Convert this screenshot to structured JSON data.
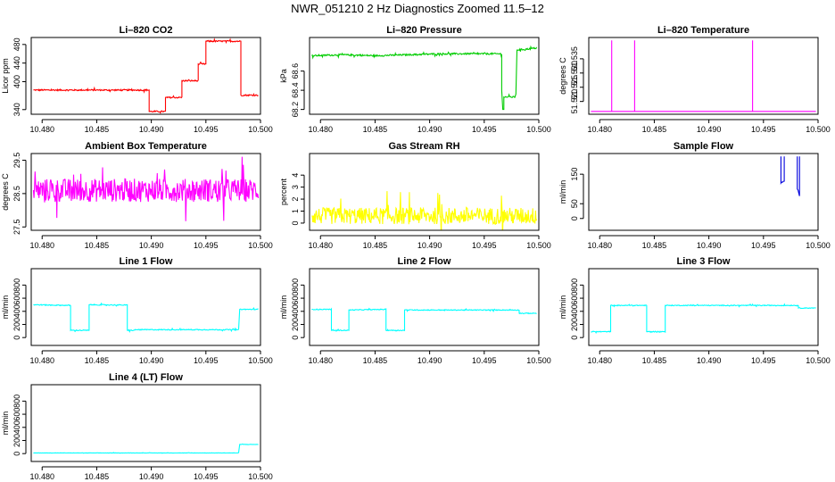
{
  "figure": {
    "title": "NWR_051210  2 Hz Diagnostics Zoomed 11.5–12"
  },
  "chart_data": [
    {
      "id": "p1",
      "type": "line",
      "title": "Li–820 CO2",
      "ylabel": "Licor ppm",
      "color": "#ff0000",
      "xlim": [
        10.479,
        10.5
      ],
      "ylim": [
        330,
        495
      ],
      "xticks": [
        10.48,
        10.485,
        10.49,
        10.495,
        10.5
      ],
      "xtick_labels": [
        "10.480",
        "10.485",
        "10.490",
        "10.495",
        "10.500"
      ],
      "yticks": [
        340,
        400,
        440,
        480
      ],
      "ytick_labels": [
        "340",
        "400",
        "440",
        "480"
      ],
      "series": [
        {
          "noise": 1.5,
          "points": [
            [
              10.4792,
              382
            ],
            [
              10.4898,
              382
            ],
            [
              10.4898,
              336
            ],
            [
              10.4913,
              336
            ],
            [
              10.4913,
              366
            ],
            [
              10.4928,
              366
            ],
            [
              10.4928,
              402
            ],
            [
              10.4943,
              402
            ],
            [
              10.4943,
              438
            ],
            [
              10.495,
              438
            ],
            [
              10.495,
              487
            ],
            [
              10.4982,
              487
            ],
            [
              10.4982,
              371
            ],
            [
              10.4998,
              371
            ]
          ]
        }
      ]
    },
    {
      "id": "p2",
      "type": "line",
      "title": "Li–820 Pressure",
      "ylabel": "kPa",
      "color": "#00cc00",
      "xlim": [
        10.479,
        10.5
      ],
      "ylim": [
        68.15,
        68.95
      ],
      "xticks": [
        10.48,
        10.485,
        10.49,
        10.495,
        10.5
      ],
      "xtick_labels": [
        "10.480",
        "10.485",
        "10.490",
        "10.495",
        "10.500"
      ],
      "yticks": [
        68.2,
        68.4,
        68.6
      ],
      "ytick_labels": [
        "68.2",
        "68.4",
        "68.6"
      ],
      "series": [
        {
          "noise": 0.008,
          "points": [
            [
              10.4792,
              68.76
            ],
            [
              10.482,
              68.77
            ],
            [
              10.485,
              68.76
            ],
            [
              10.488,
              68.77
            ],
            [
              10.491,
              68.78
            ],
            [
              10.4945,
              68.78
            ],
            [
              10.4966,
              68.78
            ],
            [
              10.4966,
              68.4
            ],
            [
              10.4967,
              68.2
            ],
            [
              10.4968,
              68.2
            ],
            [
              10.4968,
              68.33
            ],
            [
              10.4978,
              68.33
            ],
            [
              10.4979,
              68.36
            ],
            [
              10.498,
              68.82
            ],
            [
              10.499,
              68.83
            ],
            [
              10.4998,
              68.84
            ]
          ]
        }
      ]
    },
    {
      "id": "p3",
      "type": "line",
      "title": "Li–820 Temperature",
      "ylabel": "degrees C",
      "color": "#ff00ff",
      "xlim": [
        10.479,
        10.5
      ],
      "ylim": [
        51.5155,
        51.5425
      ],
      "xticks": [
        10.48,
        10.485,
        10.49,
        10.495,
        10.5
      ],
      "xtick_labels": [
        "10.480",
        "10.485",
        "10.490",
        "10.495",
        "10.500"
      ],
      "yticks": [
        51.52,
        51.525,
        51.53,
        51.535
      ],
      "ytick_labels": [
        "51.520",
        "51.525",
        "51.530",
        "51.535"
      ],
      "series": [
        {
          "noise": 0,
          "points": [
            [
              10.4792,
              51.5165
            ],
            [
              10.4811,
              51.5165
            ],
            [
              10.4811,
              51.5415
            ],
            [
              10.4811,
              51.5165
            ],
            [
              10.4832,
              51.5165
            ],
            [
              10.4832,
              51.5415
            ],
            [
              10.4832,
              51.5165
            ],
            [
              10.494,
              51.5165
            ],
            [
              10.494,
              51.5415
            ],
            [
              10.494,
              51.5165
            ],
            [
              10.4998,
              51.5165
            ]
          ]
        }
      ]
    },
    {
      "id": "p4",
      "type": "line",
      "title": "Ambient Box Temperature",
      "ylabel": "degrees C",
      "color": "#ff00ff",
      "xlim": [
        10.479,
        10.5
      ],
      "ylim": [
        27.4,
        29.7
      ],
      "xticks": [
        10.48,
        10.485,
        10.49,
        10.495,
        10.5
      ],
      "xtick_labels": [
        "10.480",
        "10.485",
        "10.490",
        "10.495",
        "10.500"
      ],
      "yticks": [
        27.5,
        28.5,
        29.5
      ],
      "ytick_labels": [
        "27.5",
        "28.5",
        "29.5"
      ],
      "series": [
        {
          "noise": 0.35,
          "points": [
            [
              10.4792,
              28.6
            ],
            [
              10.4998,
              28.6
            ]
          ]
        }
      ]
    },
    {
      "id": "p5",
      "type": "line",
      "title": "Gas Stream RH",
      "ylabel": "percent",
      "color": "#ffff00",
      "xlim": [
        10.479,
        10.5
      ],
      "ylim": [
        -0.6,
        5.8
      ],
      "xticks": [
        10.48,
        10.485,
        10.49,
        10.495,
        10.5
      ],
      "xtick_labels": [
        "10.480",
        "10.485",
        "10.490",
        "10.495",
        "10.500"
      ],
      "yticks": [
        0,
        1,
        2,
        3,
        4
      ],
      "ytick_labels": [
        "0",
        "1",
        "2",
        "3",
        "4"
      ],
      "series": [
        {
          "noise": 0.7,
          "points": [
            [
              10.4792,
              0.6
            ],
            [
              10.4998,
              0.6
            ]
          ]
        }
      ]
    },
    {
      "id": "p6",
      "type": "line",
      "title": "Sample Flow",
      "ylabel": "ml/min",
      "color": "#0000dd",
      "xlim": [
        10.479,
        10.5
      ],
      "ylim": [
        -40,
        220
      ],
      "xticks": [
        10.48,
        10.485,
        10.49,
        10.495,
        10.5
      ],
      "xtick_labels": [
        "10.480",
        "10.485",
        "10.490",
        "10.495",
        "10.500"
      ],
      "yticks": [
        0,
        50,
        150
      ],
      "ytick_labels": [
        "0",
        "50",
        "150"
      ],
      "series": [
        {
          "noise": 6,
          "points": [
            [
              10.4966,
              210
            ],
            [
              10.4966,
              120
            ],
            [
              10.4969,
              130
            ],
            [
              10.4969,
              210
            ]
          ]
        },
        {
          "noise": 6,
          "points": [
            [
              10.4981,
              210
            ],
            [
              10.4981,
              100
            ],
            [
              10.4983,
              80
            ],
            [
              10.4983,
              210
            ]
          ]
        }
      ]
    },
    {
      "id": "p7",
      "type": "line",
      "title": "Line 1 Flow",
      "ylabel": "ml/min",
      "color": "#00ffff",
      "xlim": [
        10.479,
        10.5
      ],
      "ylim": [
        -120,
        1050
      ],
      "xticks": [
        10.48,
        10.485,
        10.49,
        10.495,
        10.5
      ],
      "xtick_labels": [
        "10.480",
        "10.485",
        "10.490",
        "10.495",
        "10.500"
      ],
      "yticks": [
        0,
        200,
        400,
        600,
        800
      ],
      "ytick_labels": [
        "0",
        "200",
        "400",
        "600",
        "800"
      ],
      "series": [
        {
          "noise": 7,
          "points": [
            [
              10.4792,
              500
            ],
            [
              10.4826,
              490
            ],
            [
              10.4826,
              110
            ],
            [
              10.4843,
              110
            ],
            [
              10.4843,
              500
            ],
            [
              10.4878,
              495
            ],
            [
              10.4878,
              110
            ],
            [
              10.4885,
              110
            ],
            [
              10.4885,
              120
            ],
            [
              10.498,
              120
            ],
            [
              10.4981,
              430
            ],
            [
              10.4998,
              430
            ]
          ]
        }
      ]
    },
    {
      "id": "p8",
      "type": "line",
      "title": "Line 2 Flow",
      "ylabel": "ml/min",
      "color": "#00ffff",
      "xlim": [
        10.479,
        10.5
      ],
      "ylim": [
        -120,
        1050
      ],
      "xticks": [
        10.48,
        10.485,
        10.49,
        10.495,
        10.5
      ],
      "xtick_labels": [
        "10.480",
        "10.485",
        "10.490",
        "10.495",
        "10.500"
      ],
      "yticks": [
        0,
        200,
        400,
        600,
        800
      ],
      "ytick_labels": [
        "0",
        "200",
        "400",
        "600",
        "800"
      ],
      "series": [
        {
          "noise": 6,
          "points": [
            [
              10.4792,
              430
            ],
            [
              10.481,
              430
            ],
            [
              10.481,
              110
            ],
            [
              10.4826,
              110
            ],
            [
              10.4826,
              420
            ],
            [
              10.486,
              430
            ],
            [
              10.486,
              110
            ],
            [
              10.4877,
              110
            ],
            [
              10.4877,
              420
            ],
            [
              10.4982,
              420
            ],
            [
              10.4982,
              370
            ],
            [
              10.4998,
              370
            ]
          ]
        }
      ]
    },
    {
      "id": "p9",
      "type": "line",
      "title": "Line 3 Flow",
      "ylabel": "ml/min",
      "color": "#00ffff",
      "xlim": [
        10.479,
        10.5
      ],
      "ylim": [
        -120,
        1050
      ],
      "xticks": [
        10.48,
        10.485,
        10.49,
        10.495,
        10.5
      ],
      "xtick_labels": [
        "10.480",
        "10.485",
        "10.490",
        "10.495",
        "10.500"
      ],
      "yticks": [
        0,
        200,
        400,
        600,
        800
      ],
      "ytick_labels": [
        "0",
        "200",
        "400",
        "600",
        "800"
      ],
      "series": [
        {
          "noise": 6,
          "points": [
            [
              10.4792,
              90
            ],
            [
              10.481,
              90
            ],
            [
              10.481,
              490
            ],
            [
              10.4843,
              490
            ],
            [
              10.4843,
              90
            ],
            [
              10.486,
              90
            ],
            [
              10.486,
              490
            ],
            [
              10.4982,
              490
            ],
            [
              10.4982,
              450
            ],
            [
              10.4998,
              450
            ]
          ]
        }
      ]
    },
    {
      "id": "p10",
      "type": "line",
      "title": "Line 4 (LT) Flow",
      "ylabel": "ml/min",
      "color": "#00ffff",
      "xlim": [
        10.479,
        10.5
      ],
      "ylim": [
        -120,
        1050
      ],
      "xticks": [
        10.48,
        10.485,
        10.49,
        10.495,
        10.5
      ],
      "xtick_labels": [
        "10.480",
        "10.485",
        "10.490",
        "10.495",
        "10.500"
      ],
      "yticks": [
        0,
        200,
        400,
        600,
        800
      ],
      "ytick_labels": [
        "0",
        "200",
        "400",
        "600",
        "800"
      ],
      "series": [
        {
          "noise": 2,
          "points": [
            [
              10.4792,
              10
            ],
            [
              10.498,
              10
            ],
            [
              10.4981,
              140
            ],
            [
              10.4998,
              140
            ]
          ]
        }
      ]
    }
  ]
}
